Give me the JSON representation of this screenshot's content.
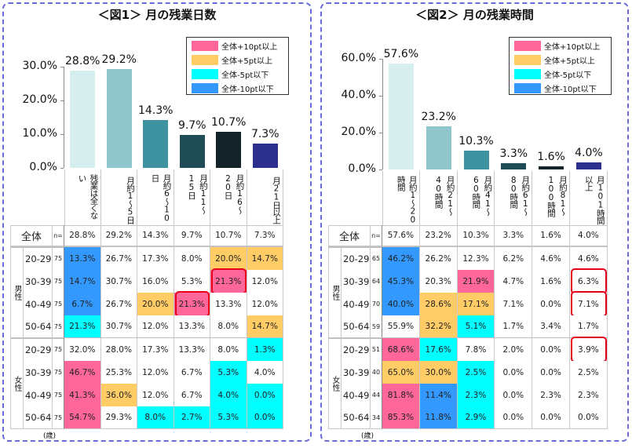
{
  "highlight_colors": {
    "p": "#ff6699",
    "o": "#ffcc66",
    "c": "#00ffff",
    "b": "#3399ff"
  },
  "chart_data": [
    {
      "type": "bar",
      "title": "＜図1＞ 月の残業日数",
      "categories": [
        "残業は全くない",
        "月約1～5日",
        "月約6～10日",
        "月約11～15日",
        "月約16～20日",
        "月21日以上"
      ],
      "values": [
        28.8,
        29.2,
        14.3,
        9.7,
        10.7,
        7.3
      ],
      "value_labels": [
        "28.8%",
        "29.2%",
        "14.3%",
        "9.7%",
        "10.7%",
        "7.3%"
      ],
      "bar_colors": [
        "#d6eeee",
        "#8ec6cc",
        "#3f93a0",
        "#1f4c55",
        "#14222a",
        "#2d2f8e"
      ],
      "ylim": [
        0,
        30
      ],
      "yticks": [
        "0.0%",
        "10.0%",
        "20.0%",
        "30.0%"
      ],
      "legend": [
        {
          "label": "全体+10pt以上",
          "color": "p"
        },
        {
          "label": "全体+5pt以上",
          "color": "o"
        },
        {
          "label": "全体-5pt以下",
          "color": "c"
        },
        {
          "label": "全体-10pt以下",
          "color": "b"
        }
      ],
      "legend_position": "top-right",
      "table": {
        "total_label": "全体",
        "n_label": "n=",
        "total_values": [
          "28.8%",
          "29.2%",
          "14.3%",
          "9.7%",
          "10.7%",
          "7.3%"
        ],
        "unit_label": "(歳)",
        "groups": [
          {
            "label": "男性",
            "rows": [
              {
                "age": "20-29",
                "n": "75",
                "values": [
                  "13.3%",
                  "26.7%",
                  "17.3%",
                  "8.0%",
                  "20.0%",
                  "14.7%"
                ],
                "hl": [
                  "b",
                  "",
                  "",
                  "",
                  "o",
                  "o"
                ],
                "boxed": [
                  false,
                  false,
                  false,
                  false,
                  false,
                  false
                ]
              },
              {
                "age": "30-39",
                "n": "75",
                "values": [
                  "14.7%",
                  "30.7%",
                  "16.0%",
                  "5.3%",
                  "21.3%",
                  "12.0%"
                ],
                "hl": [
                  "b",
                  "",
                  "",
                  "",
                  "p",
                  ""
                ],
                "boxed": [
                  false,
                  false,
                  false,
                  false,
                  true,
                  false
                ]
              },
              {
                "age": "40-49",
                "n": "75",
                "values": [
                  "6.7%",
                  "26.7%",
                  "20.0%",
                  "21.3%",
                  "13.3%",
                  "12.0%"
                ],
                "hl": [
                  "b",
                  "",
                  "o",
                  "p",
                  "",
                  ""
                ],
                "boxed": [
                  false,
                  false,
                  false,
                  true,
                  false,
                  false
                ]
              },
              {
                "age": "50-64",
                "n": "75",
                "values": [
                  "21.3%",
                  "30.7%",
                  "12.0%",
                  "13.3%",
                  "8.0%",
                  "14.7%"
                ],
                "hl": [
                  "c",
                  "",
                  "",
                  "",
                  "",
                  "o"
                ],
                "boxed": [
                  false,
                  false,
                  false,
                  false,
                  false,
                  false
                ]
              }
            ]
          },
          {
            "label": "女性",
            "rows": [
              {
                "age": "20-29",
                "n": "75",
                "values": [
                  "32.0%",
                  "28.0%",
                  "17.3%",
                  "13.3%",
                  "8.0%",
                  "1.3%"
                ],
                "hl": [
                  "",
                  "",
                  "",
                  "",
                  "",
                  "c"
                ],
                "boxed": [
                  false,
                  false,
                  false,
                  false,
                  false,
                  false
                ]
              },
              {
                "age": "30-39",
                "n": "75",
                "values": [
                  "46.7%",
                  "25.3%",
                  "12.0%",
                  "6.7%",
                  "5.3%",
                  "4.0%"
                ],
                "hl": [
                  "p",
                  "",
                  "",
                  "",
                  "c",
                  ""
                ],
                "boxed": [
                  false,
                  false,
                  false,
                  false,
                  false,
                  false
                ]
              },
              {
                "age": "40-49",
                "n": "75",
                "values": [
                  "41.3%",
                  "36.0%",
                  "12.0%",
                  "6.7%",
                  "4.0%",
                  "0.0%"
                ],
                "hl": [
                  "p",
                  "o",
                  "",
                  "",
                  "c",
                  "c"
                ],
                "boxed": [
                  false,
                  false,
                  false,
                  false,
                  false,
                  false
                ]
              },
              {
                "age": "50-64",
                "n": "75",
                "values": [
                  "54.7%",
                  "29.3%",
                  "8.0%",
                  "2.7%",
                  "5.3%",
                  "0.0%"
                ],
                "hl": [
                  "p",
                  "",
                  "c",
                  "c",
                  "c",
                  "c"
                ],
                "boxed": [
                  false,
                  false,
                  false,
                  false,
                  false,
                  false
                ]
              }
            ]
          }
        ]
      }
    },
    {
      "type": "bar",
      "title": "＜図2＞ 月の残業時間",
      "categories": [
        "月約1～20時間",
        "月約21～40時間",
        "月約41～60時間",
        "月約61～80時間",
        "月約81～100時間",
        "月101時間以上"
      ],
      "values": [
        57.6,
        23.2,
        10.3,
        3.3,
        1.6,
        4.0
      ],
      "value_labels": [
        "57.6%",
        "23.2%",
        "10.3%",
        "3.3%",
        "1.6%",
        "4.0%"
      ],
      "bar_colors": [
        "#d6eeee",
        "#8ec6cc",
        "#3f93a0",
        "#1f4c55",
        "#14222a",
        "#2d2f8e"
      ],
      "ylim": [
        0,
        60
      ],
      "yticks": [
        "0.0%",
        "20.0%",
        "40.0%",
        "60.0%"
      ],
      "legend": [
        {
          "label": "全体+10pt以上",
          "color": "p"
        },
        {
          "label": "全体+5pt以上",
          "color": "o"
        },
        {
          "label": "全体-5pt以下",
          "color": "c"
        },
        {
          "label": "全体-10pt以下",
          "color": "b"
        }
      ],
      "legend_position": "top-right",
      "table": {
        "total_label": "全体",
        "n_label": "n=",
        "total_values": [
          "57.6%",
          "23.2%",
          "10.3%",
          "3.3%",
          "1.6%",
          "4.0%"
        ],
        "unit_label": "(歳)",
        "groups": [
          {
            "label": "男性",
            "rows": [
              {
                "age": "20-29",
                "n": "65",
                "values": [
                  "46.2%",
                  "26.2%",
                  "12.3%",
                  "6.2%",
                  "4.6%",
                  "4.6%"
                ],
                "hl": [
                  "b",
                  "",
                  "",
                  "",
                  "",
                  ""
                ],
                "boxed": [
                  false,
                  false,
                  false,
                  false,
                  false,
                  false
                ]
              },
              {
                "age": "30-39",
                "n": "64",
                "values": [
                  "45.3%",
                  "20.3%",
                  "21.9%",
                  "4.7%",
                  "1.6%",
                  "6.3%"
                ],
                "hl": [
                  "b",
                  "",
                  "p",
                  "",
                  "",
                  ""
                ],
                "boxed": [
                  false,
                  false,
                  false,
                  false,
                  false,
                  true
                ]
              },
              {
                "age": "40-49",
                "n": "70",
                "values": [
                  "40.0%",
                  "28.6%",
                  "17.1%",
                  "7.1%",
                  "0.0%",
                  "7.1%"
                ],
                "hl": [
                  "b",
                  "o",
                  "o",
                  "",
                  "",
                  ""
                ],
                "boxed": [
                  false,
                  false,
                  false,
                  false,
                  false,
                  true
                ]
              },
              {
                "age": "50-64",
                "n": "59",
                "values": [
                  "55.9%",
                  "32.2%",
                  "5.1%",
                  "1.7%",
                  "3.4%",
                  "1.7%"
                ],
                "hl": [
                  "",
                  "o",
                  "c",
                  "",
                  "",
                  ""
                ],
                "boxed": [
                  false,
                  false,
                  false,
                  false,
                  false,
                  false
                ]
              }
            ]
          },
          {
            "label": "女性",
            "rows": [
              {
                "age": "20-29",
                "n": "51",
                "values": [
                  "68.6%",
                  "17.6%",
                  "7.8%",
                  "2.0%",
                  "0.0%",
                  "3.9%"
                ],
                "hl": [
                  "p",
                  "c",
                  "",
                  "",
                  "",
                  ""
                ],
                "boxed": [
                  false,
                  false,
                  false,
                  false,
                  false,
                  true
                ]
              },
              {
                "age": "30-39",
                "n": "40",
                "values": [
                  "65.0%",
                  "30.0%",
                  "2.5%",
                  "0.0%",
                  "0.0%",
                  "2.5%"
                ],
                "hl": [
                  "o",
                  "o",
                  "c",
                  "",
                  "",
                  ""
                ],
                "boxed": [
                  false,
                  false,
                  false,
                  false,
                  false,
                  false
                ]
              },
              {
                "age": "40-49",
                "n": "44",
                "values": [
                  "81.8%",
                  "11.4%",
                  "2.3%",
                  "0.0%",
                  "2.3%",
                  "2.3%"
                ],
                "hl": [
                  "p",
                  "b",
                  "c",
                  "",
                  "",
                  ""
                ],
                "boxed": [
                  false,
                  false,
                  false,
                  false,
                  false,
                  false
                ]
              },
              {
                "age": "50-64",
                "n": "34",
                "values": [
                  "85.3%",
                  "11.8%",
                  "2.9%",
                  "0.0%",
                  "0.0%",
                  "0.0%"
                ],
                "hl": [
                  "p",
                  "b",
                  "c",
                  "",
                  "",
                  ""
                ],
                "boxed": [
                  false,
                  false,
                  false,
                  false,
                  false,
                  false
                ]
              }
            ]
          }
        ]
      }
    }
  ]
}
